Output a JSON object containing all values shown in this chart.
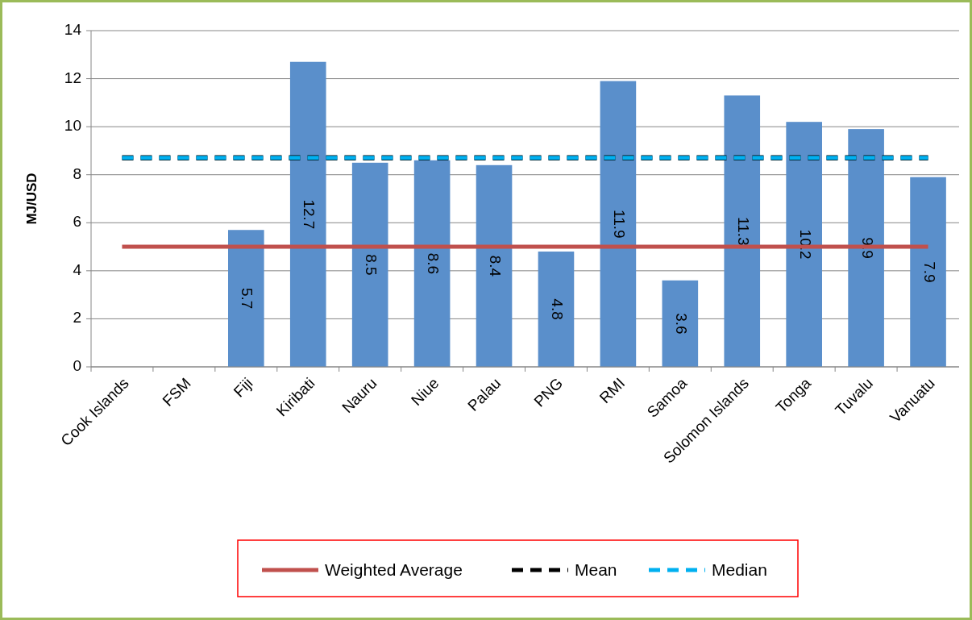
{
  "chart_data": {
    "type": "bar",
    "ylabel": "MJ/USD",
    "categories": [
      "Cook Islands",
      "FSM",
      "Fiji",
      "Kiribati",
      "Nauru",
      "Niue",
      "Palau",
      "PNG",
      "RMI",
      "Samoa",
      "Solomon Islands",
      "Tonga",
      "Tuvalu",
      "Vanuatu"
    ],
    "series": [
      {
        "color": "#5a8fcb",
        "values": [
          null,
          null,
          5.7,
          12.7,
          8.5,
          8.6,
          8.4,
          4.8,
          11.9,
          3.6,
          11.3,
          10.2,
          9.9,
          7.9
        ],
        "value_labels": [
          null,
          null,
          "5.7",
          "12.7",
          "8.5",
          "8.6",
          "8.4",
          "4.8",
          "11.9",
          "3.6",
          "11.3",
          "10.2",
          "9.9",
          "7.9"
        ]
      },
      {
        "type": "line",
        "name": "Weighted Average",
        "color": "#c0504d",
        "line_style": "solid",
        "values": [
          5,
          5,
          5,
          5,
          5,
          5,
          5,
          5,
          5,
          5,
          5,
          5,
          5,
          5
        ]
      },
      {
        "type": "line",
        "name": "Mean",
        "color": "#000000",
        "line_style": "dashed",
        "values": [
          8.7,
          8.7,
          8.7,
          8.7,
          8.7,
          8.7,
          8.7,
          8.7,
          8.7,
          8.7,
          8.7,
          8.7,
          8.7,
          8.7
        ]
      },
      {
        "type": "line",
        "name": "Median",
        "color": "#00b0f0",
        "line_style": "dashed",
        "values": [
          8.7,
          8.7,
          8.7,
          8.7,
          8.7,
          8.7,
          8.7,
          8.7,
          8.7,
          8.7,
          8.7,
          8.7,
          8.7,
          8.7
        ]
      }
    ],
    "ylim": [
      0,
      14
    ],
    "yticks": [
      0,
      2,
      4,
      6,
      8,
      10,
      12,
      14
    ],
    "grid": "y",
    "legend": "bottom"
  }
}
